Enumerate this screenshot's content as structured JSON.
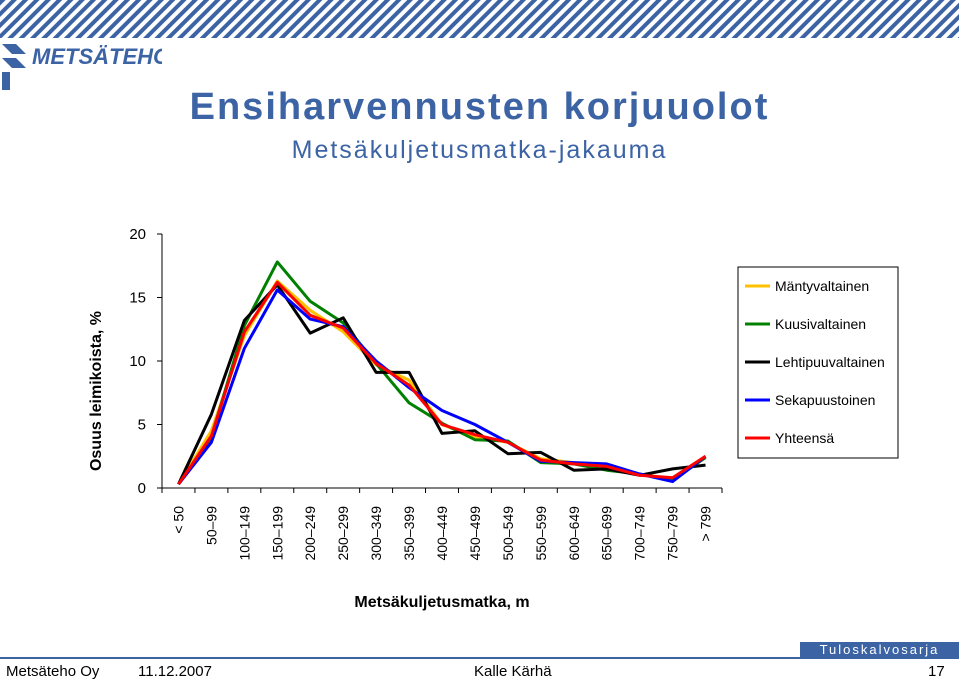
{
  "header": {
    "logo_text": "METSÄTEHO"
  },
  "title": "Ensiharvennusten korjuuolot",
  "subtitle": "Metsäkuljetusmatka-jakauma",
  "chart_data": {
    "type": "line",
    "categories": [
      "< 50",
      "50–99",
      "100–149",
      "150–199",
      "200–249",
      "250–299",
      "300–349",
      "350–399",
      "400–449",
      "450–499",
      "500–549",
      "550–599",
      "600–649",
      "650–699",
      "700–749",
      "750–799",
      "> 799"
    ],
    "series": [
      {
        "name": "Mäntyvaltainen",
        "color": "#ffc000",
        "values": [
          0.3,
          4.5,
          12.0,
          16.3,
          14.0,
          12.3,
          9.7,
          8.5,
          5.0,
          4.0,
          3.6,
          2.3,
          2.0,
          1.8,
          1.1,
          0.7,
          2.4
        ]
      },
      {
        "name": "Kuusivaltainen",
        "color": "#008000",
        "values": [
          0.3,
          4.0,
          12.8,
          17.8,
          14.7,
          13.0,
          9.8,
          6.7,
          5.1,
          3.8,
          3.7,
          2.0,
          1.9,
          1.4,
          1.1,
          0.6,
          2.4
        ]
      },
      {
        "name": "Lehtipuuvaltainen",
        "color": "#000000",
        "values": [
          0.3,
          5.8,
          13.2,
          16.0,
          12.2,
          13.4,
          9.1,
          9.1,
          4.3,
          4.5,
          2.7,
          2.8,
          1.4,
          1.5,
          1.0,
          1.5,
          1.8
        ]
      },
      {
        "name": "Sekapuustoinen",
        "color": "#0000ff",
        "values": [
          0.3,
          3.6,
          11.0,
          15.6,
          13.3,
          12.7,
          10.0,
          7.9,
          6.1,
          5.0,
          3.6,
          2.1,
          2.0,
          1.9,
          1.1,
          0.5,
          2.5
        ]
      },
      {
        "name": "Yhteensä",
        "color": "#ff0000",
        "values": [
          0.3,
          4.1,
          12.3,
          16.2,
          13.6,
          12.6,
          9.8,
          8.1,
          5.0,
          4.2,
          3.6,
          2.2,
          1.9,
          1.7,
          1.0,
          0.8,
          2.5
        ]
      }
    ],
    "ylabel": "Osuus leimikoista, %",
    "xlabel": "Metsäkuljetusmatka, m",
    "ylim": [
      0,
      20
    ],
    "yticks": [
      "0",
      "5",
      "10",
      "15",
      "20"
    ],
    "grid": false,
    "legend_position": "right"
  },
  "footer": {
    "series_tag": "Tuloskalvosarja",
    "company": "Metsäteho Oy",
    "date": "11.12.2007",
    "author": "Kalle Kärhä",
    "page": "17"
  }
}
